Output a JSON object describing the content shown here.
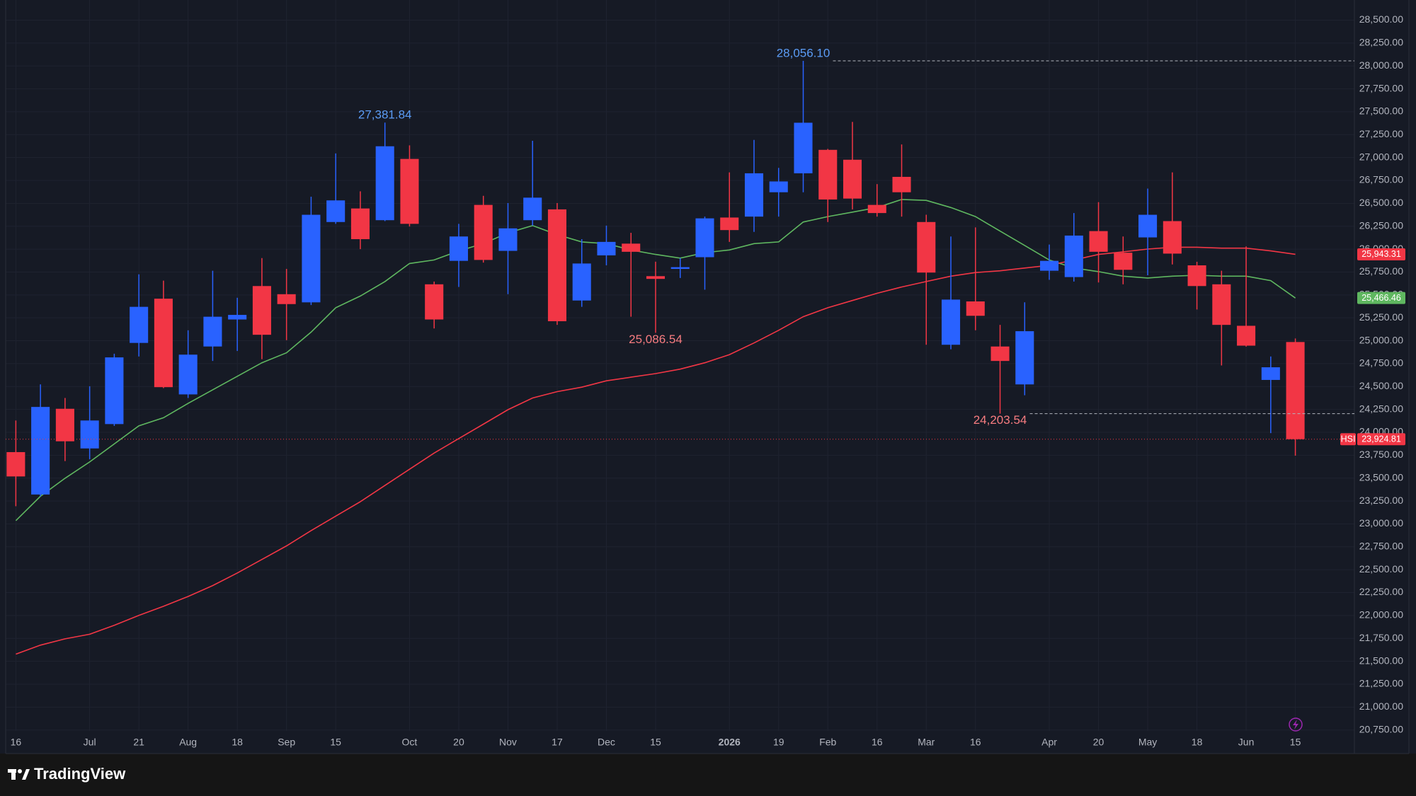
{
  "chart_data": {
    "type": "candlestick",
    "symbol": "HSI",
    "up_color": "#2962ff",
    "down_color": "#f23645",
    "grid": true,
    "x": [
      "16",
      null,
      null,
      "Jul",
      null,
      "21",
      null,
      "Aug",
      null,
      "18",
      null,
      "Sep",
      null,
      "15",
      null,
      null,
      "Oct",
      null,
      "20",
      null,
      "Nov",
      null,
      "17",
      null,
      "Dec",
      null,
      "15",
      null,
      null,
      "2026",
      null,
      "19",
      null,
      "Feb",
      null,
      "16",
      null,
      "Mar",
      null,
      "16",
      null,
      null,
      "Apr",
      null,
      "20",
      null,
      "May",
      null,
      "18",
      null,
      "Jun",
      null,
      "15"
    ],
    "open": [
      23784,
      23321,
      24257,
      23824,
      24090,
      24976,
      25459,
      24414,
      24937,
      25232,
      25597,
      25508,
      25419,
      26296,
      26444,
      26316,
      26985,
      25616,
      25872,
      26483,
      25981,
      26316,
      26434,
      25439,
      25932,
      26060,
      25705,
      25784,
      25912,
      26345,
      26355,
      26621,
      26828,
      27084,
      26976,
      26483,
      26789,
      26296,
      24956,
      25429,
      24937,
      24523,
      25764,
      25695,
      26197,
      25961,
      26128,
      26306,
      25823,
      25616,
      25163,
      24572,
      24986
    ],
    "high": [
      24129,
      24523,
      24375,
      24503,
      24858,
      25725,
      25656,
      25114,
      25764,
      25469,
      25902,
      25784,
      26572,
      27045,
      26631,
      27381.84,
      27133,
      25646,
      26276,
      26582,
      26503,
      27183,
      26503,
      26109,
      26257,
      26178,
      25863,
      25902,
      26355,
      26838,
      27192,
      26887,
      28056.1,
      27094,
      27389,
      26710,
      27143,
      26375,
      26138,
      26237,
      25173,
      25419,
      26050,
      26394,
      26513,
      26138,
      26661,
      26838,
      25862,
      25764,
      26030,
      24828,
      25025
    ],
    "low": [
      23193,
      23302,
      23686,
      23706,
      24070,
      24828,
      24483,
      24375,
      24779,
      24888,
      24799,
      25006,
      25390,
      26276,
      26000,
      26306,
      26247,
      25134,
      25587,
      25853,
      25508,
      26257,
      25173,
      25370,
      25823,
      25262,
      25086.54,
      25685,
      25557,
      26079,
      26188,
      26355,
      26621,
      26296,
      26434,
      26355,
      26355,
      24956,
      24907,
      25114,
      24203.54,
      24405,
      25665,
      25646,
      25636,
      25616,
      25715,
      25833,
      25341,
      24730,
      24936,
      23991,
      23745
    ],
    "close": [
      23518,
      24277,
      23902,
      24129,
      24818,
      25370,
      24493,
      24848,
      25262,
      25282,
      25065,
      25400,
      26375,
      26532,
      26109,
      27123,
      26276,
      25232,
      26138,
      25882,
      26227,
      26562,
      25213,
      25843,
      26079,
      25971,
      25675,
      25803,
      26336,
      26208,
      26828,
      26739,
      27380,
      26542,
      26552,
      26394,
      26621,
      25744,
      25449,
      25272,
      24779,
      25104,
      25872,
      26148,
      25971,
      25774,
      26375,
      25951,
      25597,
      25173,
      24946,
      24710,
      23924.81
    ],
    "high_labels": [
      null,
      null,
      null,
      null,
      null,
      null,
      null,
      null,
      null,
      null,
      null,
      null,
      null,
      null,
      null,
      "27,381.84",
      null,
      null,
      null,
      null,
      null,
      null,
      null,
      null,
      null,
      null,
      null,
      null,
      null,
      null,
      null,
      null,
      "28,056.10",
      null,
      null,
      null,
      null,
      null,
      null,
      null,
      null,
      null,
      null,
      null,
      null,
      null,
      null,
      null,
      null,
      null,
      null,
      null,
      null
    ],
    "low_labels": [
      null,
      null,
      null,
      null,
      null,
      null,
      null,
      null,
      null,
      null,
      null,
      null,
      null,
      null,
      null,
      null,
      null,
      null,
      null,
      null,
      null,
      null,
      null,
      null,
      null,
      null,
      "25,086.54",
      null,
      null,
      null,
      null,
      null,
      null,
      null,
      null,
      null,
      null,
      null,
      null,
      null,
      "24,203.54",
      null,
      null,
      null,
      null,
      null,
      null,
      null,
      null,
      null,
      null,
      null,
      null
    ],
    "close_labels": [
      null,
      null,
      null,
      null,
      null,
      null,
      null,
      null,
      null,
      null,
      null,
      null,
      null,
      null,
      null,
      null,
      null,
      null,
      null,
      null,
      null,
      null,
      null,
      null,
      null,
      null,
      null,
      null,
      null,
      null,
      null,
      null,
      null,
      null,
      null,
      null,
      null,
      null,
      null,
      null,
      null,
      null,
      null,
      null,
      null,
      null,
      null,
      null,
      null,
      null,
      null,
      null,
      "23,924.81"
    ],
    "overlays": [
      {
        "type": "line",
        "color": "#5fb760",
        "values": [
          23036,
          23302,
          23499,
          23676,
          23873,
          24070,
          24159,
          24316,
          24464,
          24612,
          24759,
          24868,
          25094,
          25360,
          25488,
          25646,
          25843,
          25882,
          25981,
          26060,
          26178,
          26257,
          26158,
          26079,
          26060,
          25991,
          25942,
          25902,
          25961,
          25991,
          26060,
          26079,
          26296,
          26355,
          26404,
          26454,
          26542,
          26532,
          26454,
          26355,
          26197,
          26040,
          25882,
          25794,
          25754,
          25705,
          25685,
          25705,
          25715,
          25705,
          25705,
          25656,
          25466.46
        ],
        "value_labels": [
          null,
          null,
          null,
          null,
          null,
          null,
          null,
          null,
          null,
          null,
          null,
          null,
          null,
          null,
          null,
          null,
          null,
          null,
          null,
          null,
          null,
          null,
          null,
          null,
          null,
          null,
          null,
          null,
          null,
          null,
          null,
          null,
          null,
          null,
          null,
          null,
          null,
          null,
          null,
          null,
          null,
          null,
          null,
          null,
          null,
          null,
          null,
          null,
          null,
          null,
          null,
          null,
          "25,466.46"
        ]
      },
      {
        "type": "line",
        "color": "#f23645",
        "values": [
          21578,
          21676,
          21745,
          21795,
          21893,
          22001,
          22100,
          22208,
          22327,
          22464,
          22612,
          22760,
          22927,
          23085,
          23242,
          23420,
          23597,
          23774,
          23932,
          24089,
          24247,
          24375,
          24444,
          24493,
          24562,
          24602,
          24641,
          24690,
          24759,
          24848,
          24976,
          25114,
          25262,
          25360,
          25439,
          25518,
          25587,
          25646,
          25705,
          25744,
          25764,
          25794,
          25823,
          25882,
          25942,
          25971,
          26001,
          26021,
          26021,
          26011,
          26011,
          25981,
          25943.31
        ],
        "value_labels": [
          null,
          null,
          null,
          null,
          null,
          null,
          null,
          null,
          null,
          null,
          null,
          null,
          null,
          null,
          null,
          null,
          null,
          null,
          null,
          null,
          null,
          null,
          null,
          null,
          null,
          null,
          null,
          null,
          null,
          null,
          null,
          null,
          null,
          null,
          null,
          null,
          null,
          null,
          null,
          null,
          null,
          null,
          null,
          null,
          null,
          null,
          null,
          null,
          null,
          null,
          null,
          null,
          "25,943.31"
        ]
      }
    ],
    "ylim": [
      20740,
      28720
    ],
    "yticks": [
      {
        "value": 20750,
        "label": "20,750.00"
      },
      {
        "value": 21000,
        "label": "21,000.00"
      },
      {
        "value": 21250,
        "label": "21,250.00"
      },
      {
        "value": 21500,
        "label": "21,500.00"
      },
      {
        "value": 21750,
        "label": "21,750.00"
      },
      {
        "value": 22000,
        "label": "22,000.00"
      },
      {
        "value": 22250,
        "label": "22,250.00"
      },
      {
        "value": 22500,
        "label": "22,500.00"
      },
      {
        "value": 22750,
        "label": "22,750.00"
      },
      {
        "value": 23000,
        "label": "23,000.00"
      },
      {
        "value": 23250,
        "label": "23,250.00"
      },
      {
        "value": 23500,
        "label": "23,500.00"
      },
      {
        "value": 23750,
        "label": "23,750.00"
      },
      {
        "value": 24000,
        "label": "24,000.00"
      },
      {
        "value": 24250,
        "label": "24,250.00"
      },
      {
        "value": 24500,
        "label": "24,500.00"
      },
      {
        "value": 24750,
        "label": "24,750.00"
      },
      {
        "value": 25000,
        "label": "25,000.00"
      },
      {
        "value": 25250,
        "label": "25,250.00"
      },
      {
        "value": 25500,
        "label": "25,500.00"
      },
      {
        "value": 25750,
        "label": "25,750.00"
      },
      {
        "value": 26000,
        "label": "26,000.00"
      },
      {
        "value": 26250,
        "label": "26,250.00"
      },
      {
        "value": 26500,
        "label": "26,500.00"
      },
      {
        "value": 26750,
        "label": "26,750.00"
      },
      {
        "value": 27000,
        "label": "27,000.00"
      },
      {
        "value": 27250,
        "label": "27,250.00"
      },
      {
        "value": 27500,
        "label": "27,500.00"
      },
      {
        "value": 27750,
        "label": "27,750.00"
      },
      {
        "value": 28000,
        "label": "28,000.00"
      },
      {
        "value": 28250,
        "label": "28,250.00"
      },
      {
        "value": 28500,
        "label": "28,500.00"
      }
    ]
  },
  "footer": {
    "brand": "TradingView"
  }
}
